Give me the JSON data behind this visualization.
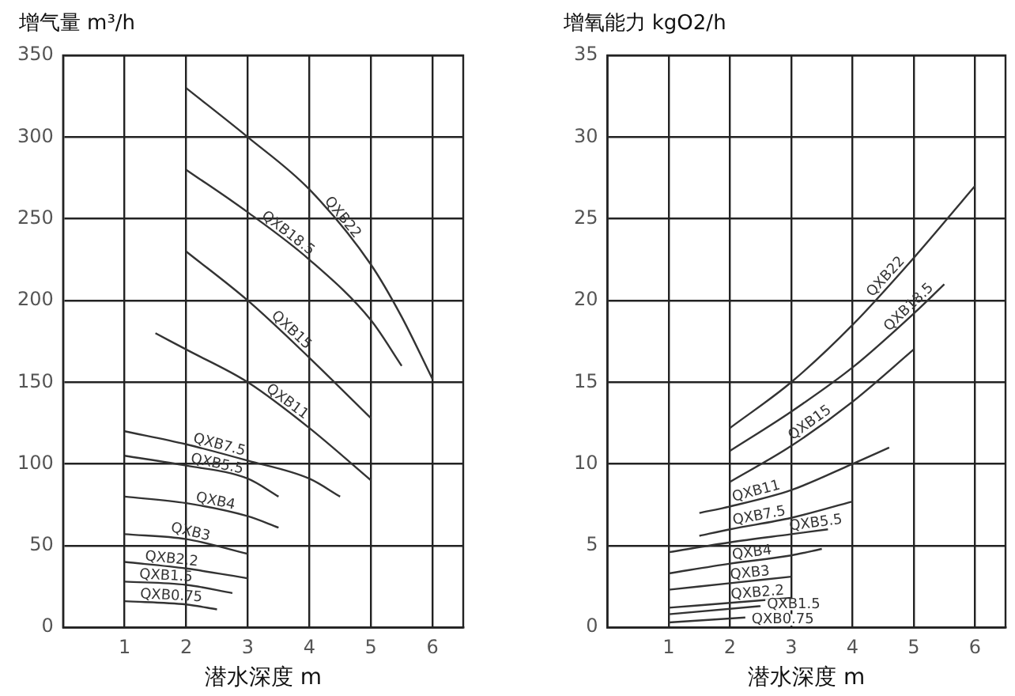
{
  "chart_data": [
    {
      "type": "line",
      "ylabel": "增气量 m³/h",
      "xlabel": "潜水深度 m",
      "xlim": [
        0,
        6.5
      ],
      "xticks": [
        1,
        2,
        3,
        4,
        5,
        6
      ],
      "ylim": [
        0,
        350
      ],
      "yticks": [
        0,
        50,
        100,
        150,
        200,
        250,
        300,
        350
      ],
      "grid": true,
      "marker": "none",
      "series": [
        {
          "name": "QXB22",
          "color": "#333333",
          "x": [
            2,
            3,
            4,
            5,
            5.5,
            6
          ],
          "values": [
            330,
            300,
            268,
            222,
            190,
            152
          ]
        },
        {
          "name": "QXB18.5",
          "color": "#333333",
          "x": [
            2,
            3,
            4,
            5,
            5.5
          ],
          "values": [
            280,
            254,
            225,
            188,
            160
          ]
        },
        {
          "name": "QXB15",
          "color": "#333333",
          "x": [
            2,
            3,
            4,
            5
          ],
          "values": [
            230,
            200,
            165,
            128
          ]
        },
        {
          "name": "QXB11",
          "color": "#333333",
          "x": [
            1.5,
            2,
            3,
            4,
            5
          ],
          "values": [
            180,
            170,
            150,
            122,
            90
          ]
        },
        {
          "name": "QXB7.5",
          "color": "#333333",
          "x": [
            1,
            2,
            3,
            4,
            4.5
          ],
          "values": [
            120,
            112,
            102,
            91,
            80
          ]
        },
        {
          "name": "QXB5.5",
          "color": "#333333",
          "x": [
            1,
            2,
            3,
            3.5
          ],
          "values": [
            105,
            99,
            91,
            80
          ]
        },
        {
          "name": "QXB4",
          "color": "#333333",
          "x": [
            1,
            2,
            3,
            3.5
          ],
          "values": [
            80,
            76,
            68,
            61
          ]
        },
        {
          "name": "QXB3",
          "color": "#333333",
          "x": [
            1,
            2,
            3
          ],
          "values": [
            57,
            54,
            45
          ]
        },
        {
          "name": "QXB2.2",
          "color": "#333333",
          "x": [
            1,
            2,
            3
          ],
          "values": [
            40,
            36,
            30
          ]
        },
        {
          "name": "QXB1.5",
          "color": "#333333",
          "x": [
            1,
            2,
            2.75
          ],
          "values": [
            28,
            26,
            21
          ]
        },
        {
          "name": "QXB0.75",
          "color": "#333333",
          "x": [
            1,
            2,
            2.5
          ],
          "values": [
            16,
            14,
            11
          ]
        }
      ]
    },
    {
      "type": "line",
      "ylabel": "增氧能力 kgO2/h",
      "xlabel": "潜水深度 m",
      "xlim": [
        0,
        6.5
      ],
      "xticks": [
        1,
        2,
        3,
        4,
        5,
        6
      ],
      "ylim": [
        0,
        35
      ],
      "yticks": [
        0,
        5,
        10,
        15,
        20,
        25,
        30,
        35
      ],
      "grid": true,
      "marker": "none",
      "series": [
        {
          "name": "QXB22",
          "color": "#333333",
          "x": [
            2,
            3,
            4,
            5,
            6
          ],
          "values": [
            12.2,
            15,
            18.5,
            22.6,
            27
          ]
        },
        {
          "name": "QXB18.5",
          "color": "#333333",
          "x": [
            2,
            3,
            4,
            5,
            5.5
          ],
          "values": [
            10.8,
            13.2,
            15.9,
            19.2,
            21
          ]
        },
        {
          "name": "QXB15",
          "color": "#333333",
          "x": [
            2,
            3,
            4,
            5
          ],
          "values": [
            8.9,
            11.1,
            13.8,
            17
          ]
        },
        {
          "name": "QXB11",
          "color": "#333333",
          "x": [
            1.5,
            2,
            3,
            4,
            4.6
          ],
          "values": [
            7,
            7.4,
            8.4,
            10,
            11
          ]
        },
        {
          "name": "QXB7.5",
          "color": "#333333",
          "x": [
            1.5,
            2,
            3,
            4
          ],
          "values": [
            5.6,
            6,
            6.7,
            7.7
          ]
        },
        {
          "name": "QXB5.5",
          "color": "#333333",
          "x": [
            1,
            2,
            3,
            3.6
          ],
          "values": [
            4.6,
            5.2,
            5.7,
            6
          ]
        },
        {
          "name": "QXB4",
          "color": "#333333",
          "x": [
            1,
            2,
            3,
            3.5
          ],
          "values": [
            3.3,
            3.9,
            4.4,
            4.8
          ]
        },
        {
          "name": "QXB3",
          "color": "#333333",
          "x": [
            1,
            2,
            3
          ],
          "values": [
            2.3,
            2.7,
            3.1
          ]
        },
        {
          "name": "QXB2.2",
          "color": "#333333",
          "x": [
            1,
            2,
            3
          ],
          "values": [
            1.2,
            1.5,
            1.8
          ]
        },
        {
          "name": "QXB1.5",
          "color": "#333333",
          "x": [
            1,
            2.5
          ],
          "values": [
            0.8,
            1.3
          ]
        },
        {
          "name": "QXB0.75",
          "color": "#333333",
          "x": [
            1,
            2.25
          ],
          "values": [
            0.3,
            0.6
          ]
        }
      ]
    }
  ]
}
